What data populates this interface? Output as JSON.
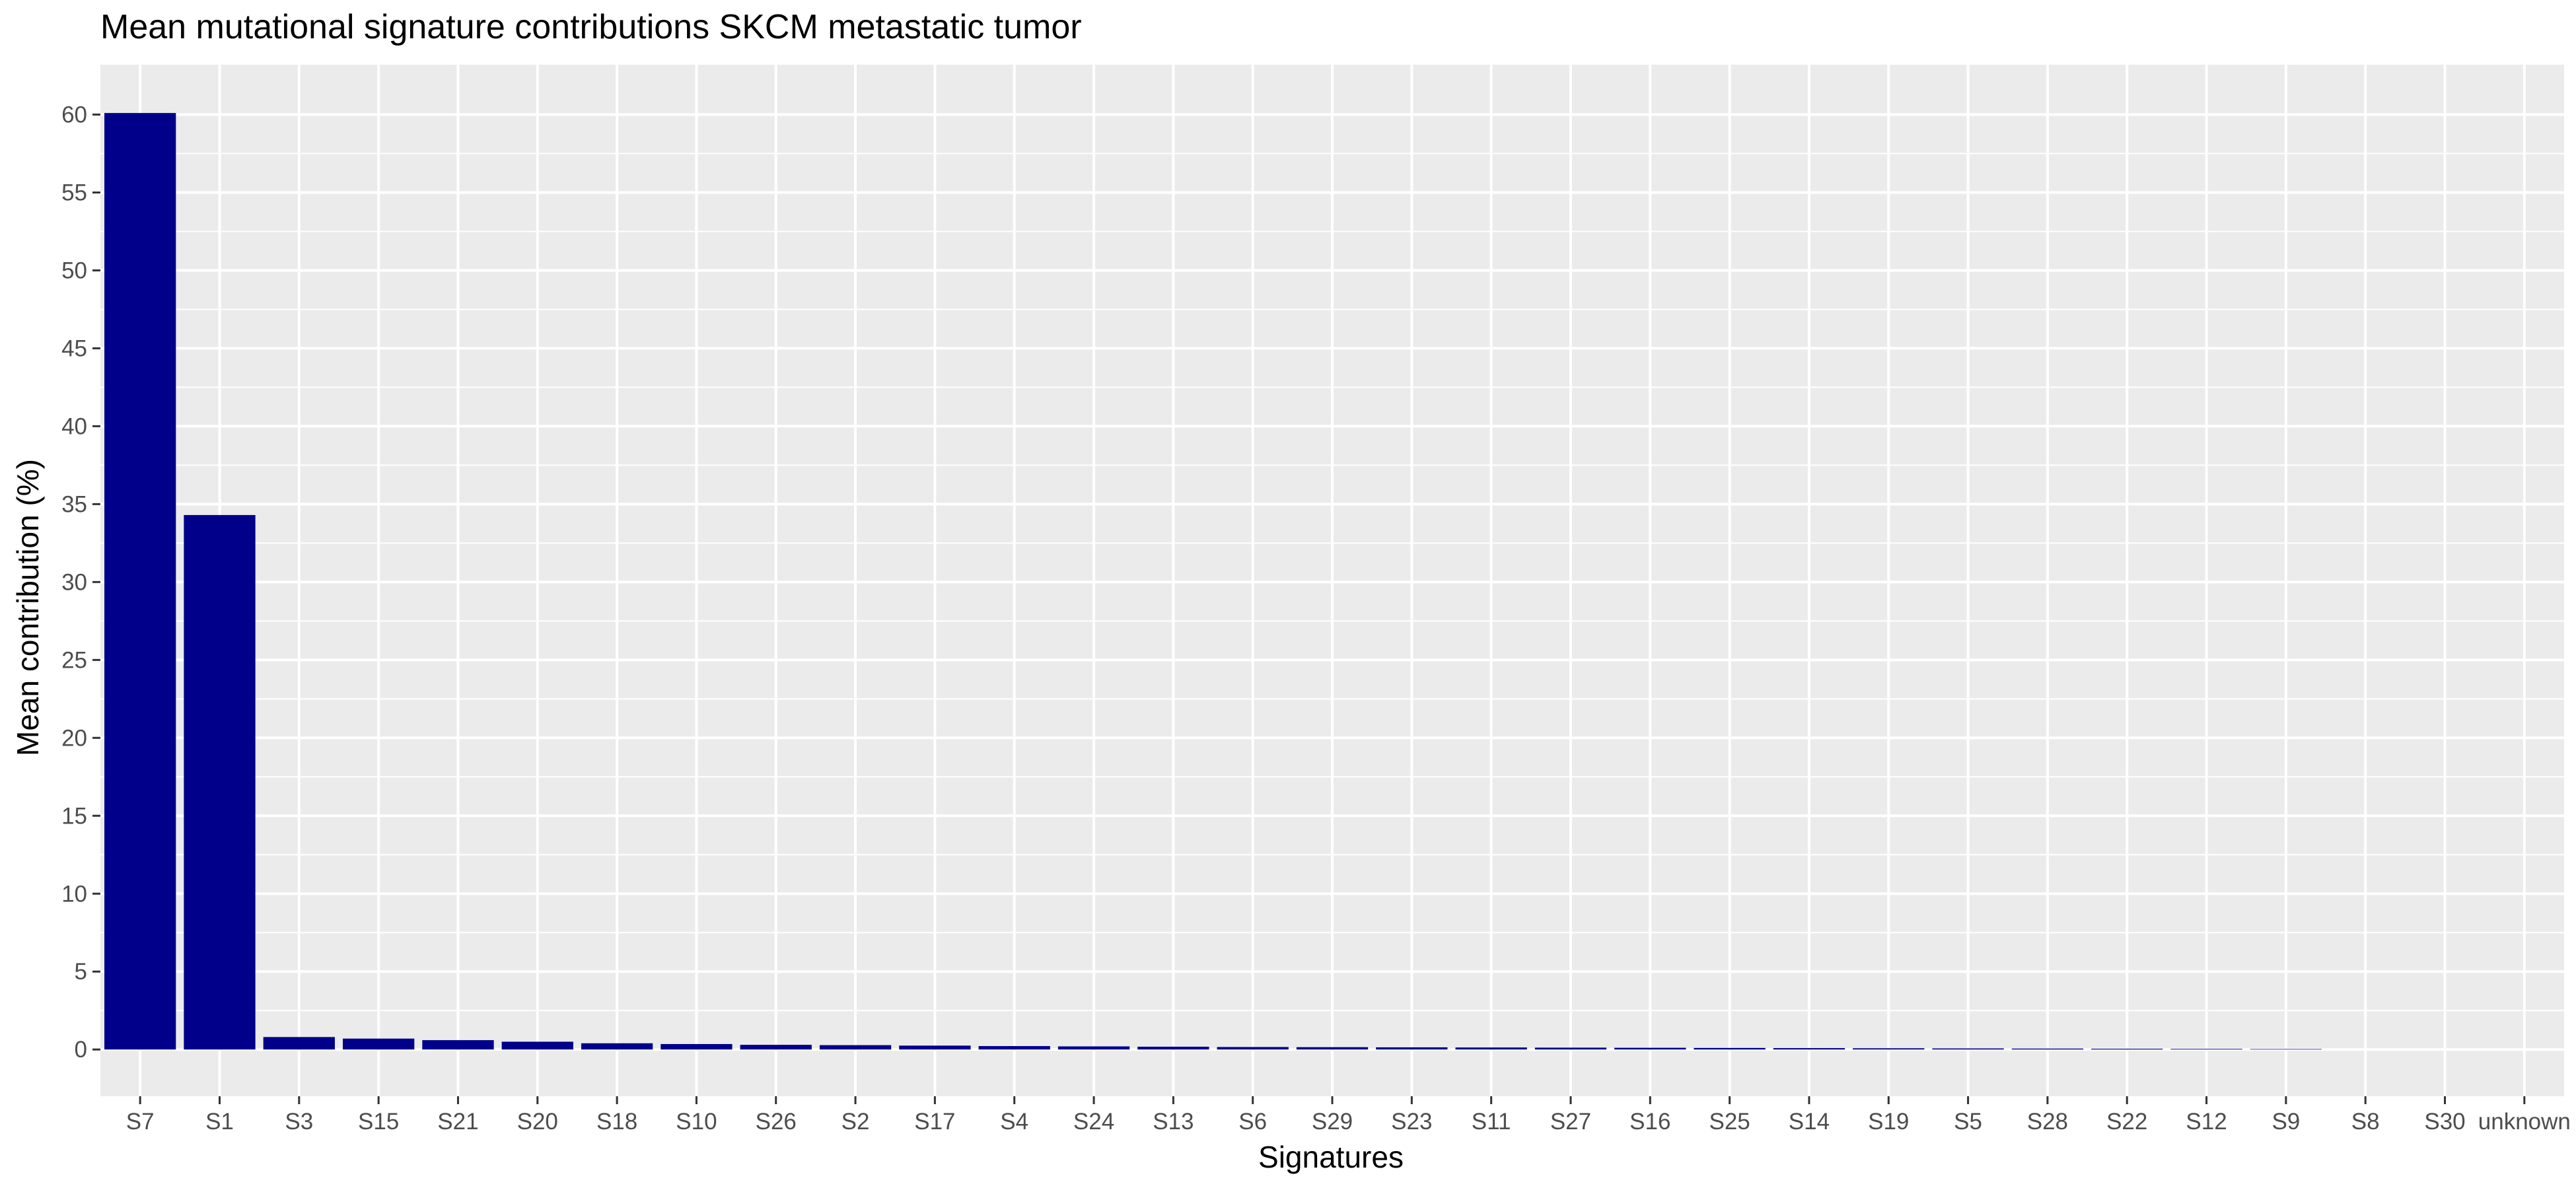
{
  "chart_data": {
    "type": "bar",
    "title": "Mean mutational signature contributions SKCM metastatic tumor",
    "xlabel": "Signatures",
    "ylabel": "Mean contribution (%)",
    "categories": [
      "S7",
      "S1",
      "S3",
      "S15",
      "S21",
      "S20",
      "S18",
      "S10",
      "S26",
      "S2",
      "S17",
      "S4",
      "S24",
      "S13",
      "S6",
      "S29",
      "S23",
      "S11",
      "S27",
      "S16",
      "S25",
      "S14",
      "S19",
      "S5",
      "S28",
      "S22",
      "S12",
      "S9",
      "S8",
      "S30",
      "unknown"
    ],
    "values": [
      60.1,
      34.3,
      0.8,
      0.7,
      0.6,
      0.5,
      0.4,
      0.35,
      0.3,
      0.28,
      0.25,
      0.22,
      0.2,
      0.18,
      0.16,
      0.15,
      0.14,
      0.13,
      0.12,
      0.11,
      0.1,
      0.09,
      0.08,
      0.07,
      0.06,
      0.05,
      0.04,
      0.03,
      0.0,
      0.0,
      0.0
    ],
    "ylim": [
      -3.0,
      63.2
    ],
    "yticks": [
      0,
      5,
      10,
      15,
      20,
      25,
      30,
      35,
      40,
      45,
      50,
      55,
      60
    ],
    "grid": true,
    "legend": "none",
    "bar_color": "#00008B",
    "panel_color": "#EBEBEB",
    "grid_color": "#FFFFFF"
  }
}
